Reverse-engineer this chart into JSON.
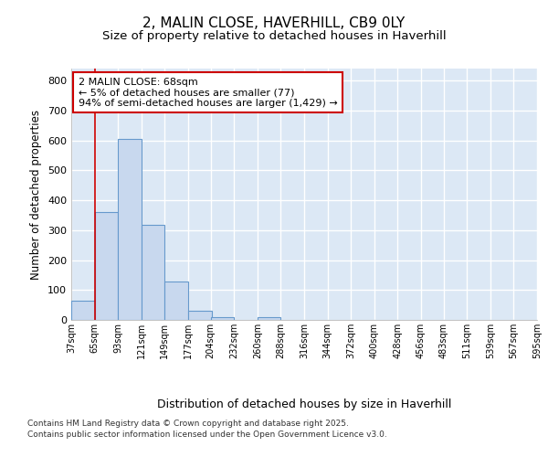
{
  "title_line1": "2, MALIN CLOSE, HAVERHILL, CB9 0LY",
  "title_line2": "Size of property relative to detached houses in Haverhill",
  "xlabel": "Distribution of detached houses by size in Haverhill",
  "ylabel": "Number of detached properties",
  "bar_color": "#c8d8ee",
  "bar_edge_color": "#6699cc",
  "annotation_box_text": "2 MALIN CLOSE: 68sqm\n← 5% of detached houses are smaller (77)\n94% of semi-detached houses are larger (1,429) →",
  "annotation_box_color": "#ffffff",
  "annotation_box_edge_color": "#cc0000",
  "property_line_color": "#cc0000",
  "property_line_x": 65,
  "footer_line1": "Contains HM Land Registry data © Crown copyright and database right 2025.",
  "footer_line2": "Contains public sector information licensed under the Open Government Licence v3.0.",
  "background_color": "#ffffff",
  "plot_bg_color": "#dce8f5",
  "bins": [
    37,
    65,
    93,
    121,
    149,
    177,
    204,
    232,
    260,
    288,
    316,
    344,
    372,
    400,
    428,
    456,
    483,
    511,
    539,
    567,
    595
  ],
  "bin_labels": [
    "37sqm",
    "65sqm",
    "93sqm",
    "121sqm",
    "149sqm",
    "177sqm",
    "204sqm",
    "232sqm",
    "260sqm",
    "288sqm",
    "316sqm",
    "344sqm",
    "372sqm",
    "400sqm",
    "428sqm",
    "456sqm",
    "483sqm",
    "511sqm",
    "539sqm",
    "567sqm",
    "595sqm"
  ],
  "bar_heights": [
    65,
    360,
    605,
    318,
    128,
    30,
    10,
    0,
    10,
    0,
    0,
    0,
    0,
    0,
    0,
    0,
    0,
    0,
    0,
    0
  ],
  "ylim": [
    0,
    840
  ],
  "yticks": [
    0,
    100,
    200,
    300,
    400,
    500,
    600,
    700,
    800
  ],
  "grid_color": "#ffffff",
  "title_fontsize": 11,
  "subtitle_fontsize": 9.5
}
